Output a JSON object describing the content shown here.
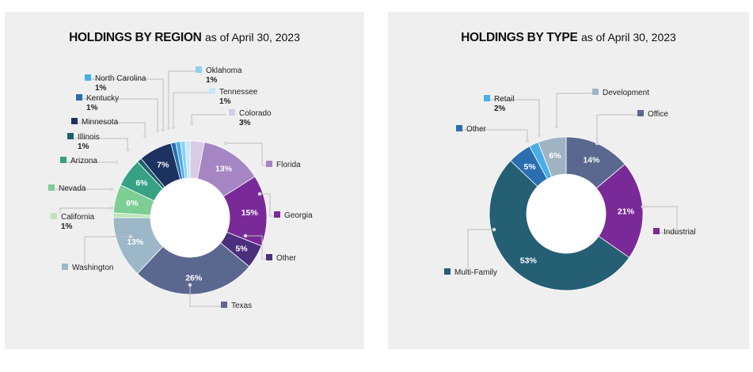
{
  "colors": {
    "panel_bg": "#efeff0",
    "hole": "#ffffff",
    "leader": "#bcbcbc"
  },
  "chart_data": [
    {
      "type": "pie",
      "title_bold": "HOLDINGS BY REGION",
      "title_rest": "as of April 30, 2023",
      "slices": [
        {
          "label": "Colorado",
          "value": 3,
          "value_label": "3%",
          "color": "#d8cbe4",
          "show_inside": false
        },
        {
          "label": "Florida",
          "value": 13,
          "value_label": "13%",
          "color": "#a585c2",
          "show_inside": true
        },
        {
          "label": "Georgia",
          "value": 15,
          "value_label": "15%",
          "color": "#7a2a98",
          "show_inside": true
        },
        {
          "label": "Other",
          "value": 5,
          "value_label": "5%",
          "color": "#4b2f7d",
          "show_inside": true
        },
        {
          "label": "Texas",
          "value": 26,
          "value_label": "26%",
          "color": "#5a6890",
          "show_inside": true
        },
        {
          "label": "Washington",
          "value": 13,
          "value_label": "13%",
          "color": "#9cb7c8",
          "show_inside": true
        },
        {
          "label": "California",
          "value": 1,
          "value_label": "1%",
          "color": "#bde6b6",
          "show_inside": false
        },
        {
          "label": "Nevada",
          "value": 6,
          "value_label": "6%",
          "color": "#7dce93",
          "show_inside": true
        },
        {
          "label": "Arizona",
          "value": 6,
          "value_label": "6%",
          "color": "#37a184",
          "show_inside": true
        },
        {
          "label": "Illinois",
          "value": 1,
          "value_label": "1%",
          "color": "#1b5f6b",
          "show_inside": false
        },
        {
          "label": "Minnesota",
          "value": 7,
          "value_label": "7%",
          "color": "#1c3260",
          "show_inside": true
        },
        {
          "label": "Kentucky",
          "value": 1,
          "value_label": "1%",
          "color": "#2a6eb0",
          "show_inside": false
        },
        {
          "label": "North Carolina",
          "value": 1,
          "value_label": "1%",
          "color": "#4aaee6",
          "show_inside": false
        },
        {
          "label": "Oklahoma",
          "value": 1,
          "value_label": "1%",
          "color": "#8fd0f2",
          "show_inside": false
        },
        {
          "label": "Tennessee",
          "value": 1,
          "value_label": "1%",
          "color": "#c4e8f8",
          "show_inside": false
        }
      ]
    },
    {
      "type": "pie",
      "title_bold": "HOLDINGS BY TYPE",
      "title_rest": "as of April 30, 2023",
      "slices": [
        {
          "label": "Office",
          "value": 14,
          "value_label": "14%",
          "color": "#5a6890",
          "show_inside": true
        },
        {
          "label": "Industrial",
          "value": 21,
          "value_label": "21%",
          "color": "#7a2a98",
          "show_inside": true
        },
        {
          "label": "Multi-Family",
          "value": 53,
          "value_label": "53%",
          "color": "#245f74",
          "show_inside": true
        },
        {
          "label": "Other",
          "value": 5,
          "value_label": "5%",
          "color": "#2a6eb0",
          "show_inside": true
        },
        {
          "label": "Retail",
          "value": 2,
          "value_label": "2%",
          "color": "#4aaee6",
          "show_inside": false
        },
        {
          "label": "Development",
          "value": 6,
          "value_label": "6%",
          "color": "#9fb3c3",
          "show_inside": true
        }
      ]
    }
  ]
}
